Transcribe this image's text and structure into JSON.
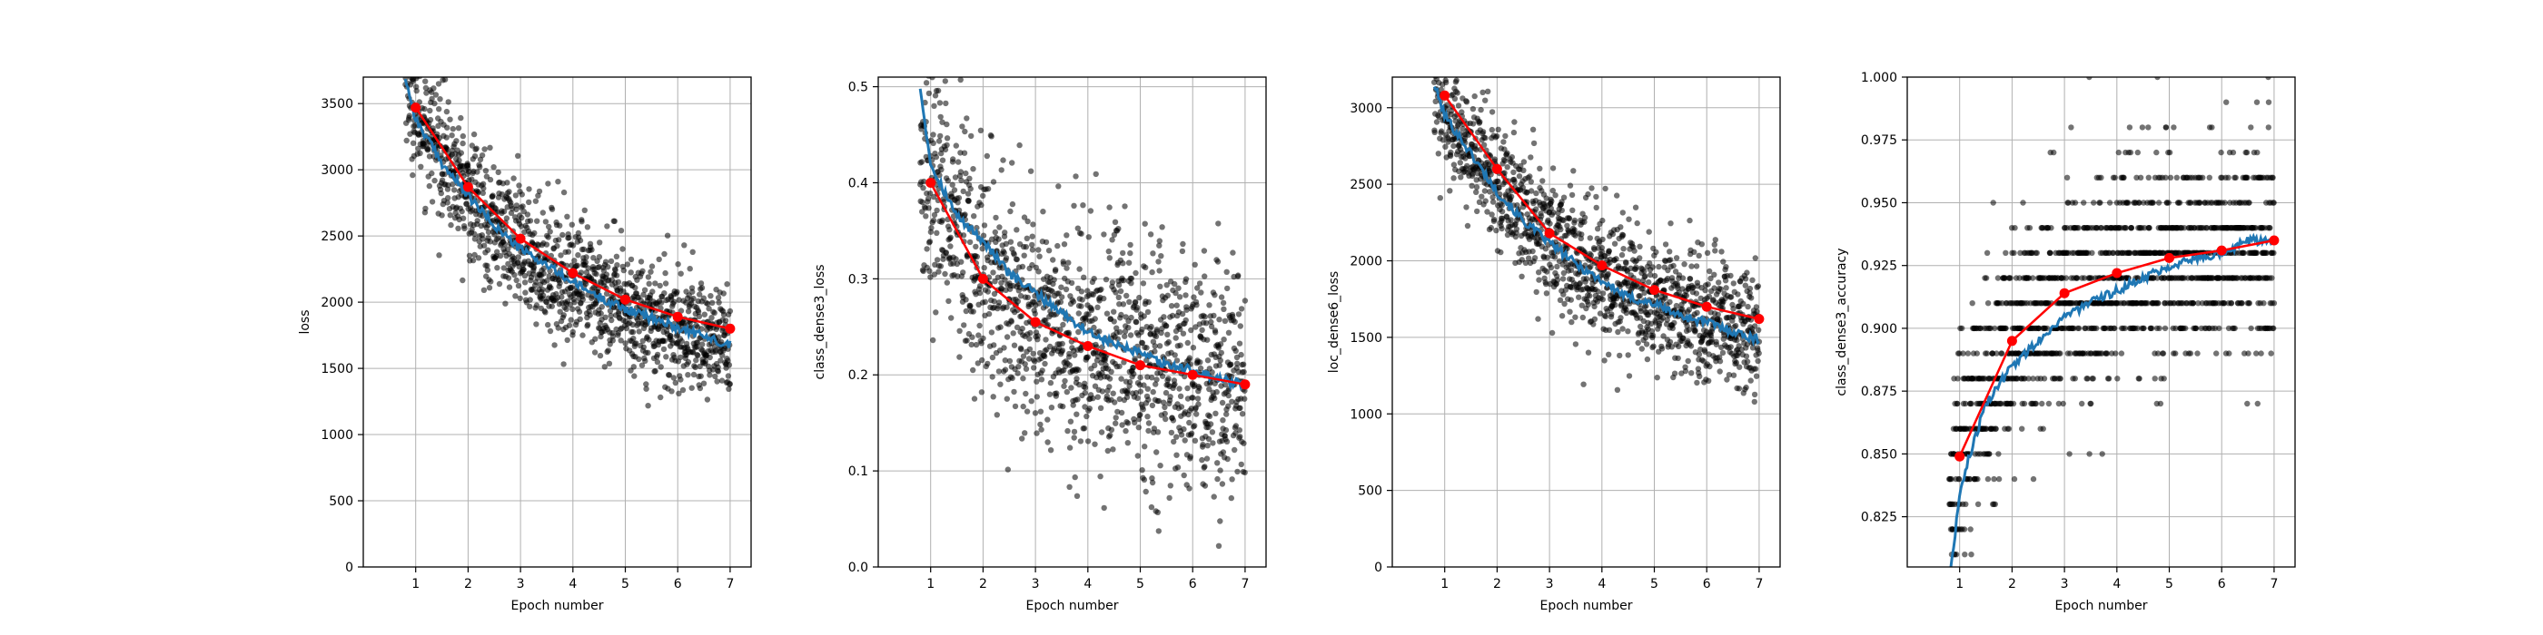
{
  "chart_data": [
    {
      "type": "scatter",
      "xlabel": "Epoch number",
      "ylabel": "loss",
      "xlim": [
        0.0,
        7.4
      ],
      "ylim": [
        0,
        3700
      ],
      "xticks": [
        1,
        2,
        3,
        4,
        5,
        6,
        7
      ],
      "yticks": [
        0,
        500,
        1000,
        1500,
        2000,
        2500,
        3000,
        3500
      ],
      "ytick_labels": [
        "0",
        "500",
        "1000",
        "1500",
        "2000",
        "2500",
        "3000",
        "3500"
      ],
      "grid": true,
      "scatter": {
        "color": "#000000",
        "x_range": [
          0.8,
          7.0
        ],
        "trend": [
          [
            0.8,
            3750
          ],
          [
            1,
            3450
          ],
          [
            2,
            2800
          ],
          [
            3,
            2400
          ],
          [
            4,
            2150
          ],
          [
            5,
            1950
          ],
          [
            6,
            1800
          ],
          [
            7,
            1700
          ]
        ],
        "spread": 230,
        "count": 1400
      },
      "smoothed": {
        "color": "#1f77b4",
        "values": [
          [
            0.8,
            3700
          ],
          [
            1,
            3380
          ],
          [
            1.5,
            3050
          ],
          [
            2,
            2800
          ],
          [
            2.5,
            2580
          ],
          [
            3,
            2400
          ],
          [
            3.5,
            2280
          ],
          [
            4,
            2150
          ],
          [
            4.5,
            2040
          ],
          [
            5,
            1950
          ],
          [
            5.5,
            1880
          ],
          [
            6,
            1810
          ],
          [
            6.5,
            1740
          ],
          [
            7,
            1680
          ]
        ]
      },
      "epoch_avg": {
        "color": "#ff0000",
        "x": [
          1,
          2,
          3,
          4,
          5,
          6,
          7
        ],
        "y": [
          3470,
          2870,
          2480,
          2220,
          2020,
          1890,
          1800
        ]
      }
    },
    {
      "type": "scatter",
      "xlabel": "Epoch number",
      "ylabel": "class_dense3_loss",
      "xlim": [
        0.0,
        7.4
      ],
      "ylim": [
        0,
        0.51
      ],
      "xticks": [
        1,
        2,
        3,
        4,
        5,
        6,
        7
      ],
      "yticks": [
        0.0,
        0.1,
        0.2,
        0.3,
        0.4,
        0.5
      ],
      "ytick_labels": [
        "0.0",
        "0.1",
        "0.2",
        "0.3",
        "0.4",
        "0.5"
      ],
      "grid": true,
      "scatter": {
        "color": "#000000",
        "x_range": [
          0.8,
          7.0
        ],
        "trend": [
          [
            0.8,
            0.44
          ],
          [
            1,
            0.4
          ],
          [
            2,
            0.31
          ],
          [
            3,
            0.26
          ],
          [
            4,
            0.235
          ],
          [
            5,
            0.215
          ],
          [
            6,
            0.205
          ],
          [
            7,
            0.19
          ]
        ],
        "spread": 0.06,
        "count": 1400
      },
      "smoothed": {
        "color": "#1f77b4",
        "values": [
          [
            0.8,
            0.5
          ],
          [
            1,
            0.42
          ],
          [
            1.5,
            0.365
          ],
          [
            2,
            0.34
          ],
          [
            2.5,
            0.305
          ],
          [
            3,
            0.285
          ],
          [
            3.5,
            0.265
          ],
          [
            4,
            0.245
          ],
          [
            4.5,
            0.232
          ],
          [
            5,
            0.222
          ],
          [
            5.5,
            0.21
          ],
          [
            6,
            0.205
          ],
          [
            6.5,
            0.195
          ],
          [
            7,
            0.19
          ]
        ]
      },
      "epoch_avg": {
        "color": "#ff0000",
        "x": [
          1,
          2,
          3,
          4,
          5,
          6,
          7
        ],
        "y": [
          0.4,
          0.3,
          0.255,
          0.23,
          0.21,
          0.2,
          0.19
        ]
      }
    },
    {
      "type": "scatter",
      "xlabel": "Epoch number",
      "ylabel": "loc_dense6_loss",
      "xlim": [
        0.0,
        7.4
      ],
      "ylim": [
        0,
        3200
      ],
      "xticks": [
        1,
        2,
        3,
        4,
        5,
        6,
        7
      ],
      "yticks": [
        0,
        500,
        1000,
        1500,
        2000,
        2500,
        3000
      ],
      "ytick_labels": [
        "0",
        "500",
        "1000",
        "1500",
        "2000",
        "2500",
        "3000"
      ],
      "grid": true,
      "scatter": {
        "color": "#000000",
        "x_range": [
          0.8,
          7.0
        ],
        "trend": [
          [
            0.8,
            3150
          ],
          [
            1,
            2950
          ],
          [
            2,
            2500
          ],
          [
            3,
            2150
          ],
          [
            4,
            1900
          ],
          [
            5,
            1750
          ],
          [
            6,
            1620
          ],
          [
            7,
            1520
          ]
        ],
        "spread": 200,
        "count": 1400
      },
      "smoothed": {
        "color": "#1f77b4",
        "values": [
          [
            0.8,
            3150
          ],
          [
            1,
            2950
          ],
          [
            1.5,
            2700
          ],
          [
            2,
            2450
          ],
          [
            2.5,
            2260
          ],
          [
            3,
            2120
          ],
          [
            3.5,
            1980
          ],
          [
            4,
            1870
          ],
          [
            4.5,
            1760
          ],
          [
            5,
            1720
          ],
          [
            5.5,
            1640
          ],
          [
            6,
            1600
          ],
          [
            6.5,
            1540
          ],
          [
            7,
            1480
          ]
        ]
      },
      "epoch_avg": {
        "color": "#ff0000",
        "x": [
          1,
          2,
          3,
          4,
          5,
          6,
          7
        ],
        "y": [
          3080,
          2600,
          2180,
          1970,
          1810,
          1700,
          1620
        ]
      }
    },
    {
      "type": "scatter",
      "xlabel": "Epoch number",
      "ylabel": "class_dense3_accuracy",
      "xlim": [
        0.0,
        7.4
      ],
      "ylim": [
        0.805,
        1.0
      ],
      "xticks": [
        1,
        2,
        3,
        4,
        5,
        6,
        7
      ],
      "yticks": [
        0.825,
        0.85,
        0.875,
        0.9,
        0.925,
        0.95,
        0.975,
        1.0
      ],
      "ytick_labels": [
        "0.825",
        "0.850",
        "0.875",
        "0.900",
        "0.925",
        "0.950",
        "0.975",
        "1.000"
      ],
      "grid": true,
      "scatter": {
        "color": "#000000",
        "x_range": [
          0.8,
          7.0
        ],
        "trend": [
          [
            0.8,
            0.83
          ],
          [
            1,
            0.85
          ],
          [
            2,
            0.895
          ],
          [
            3,
            0.912
          ],
          [
            4,
            0.92
          ],
          [
            5,
            0.927
          ],
          [
            6,
            0.931
          ],
          [
            7,
            0.935
          ]
        ],
        "spread": 0.022,
        "count": 1400,
        "quantize": 0.01
      },
      "smoothed": {
        "color": "#1f77b4",
        "values": [
          [
            0.8,
            0.8
          ],
          [
            0.9,
            0.815
          ],
          [
            1,
            0.835
          ],
          [
            1.2,
            0.85
          ],
          [
            1.5,
            0.87
          ],
          [
            2,
            0.885
          ],
          [
            2.5,
            0.895
          ],
          [
            3,
            0.905
          ],
          [
            3.5,
            0.91
          ],
          [
            4,
            0.915
          ],
          [
            4.5,
            0.92
          ],
          [
            5,
            0.925
          ],
          [
            5.5,
            0.928
          ],
          [
            6,
            0.93
          ],
          [
            6.5,
            0.935
          ],
          [
            7,
            0.935
          ]
        ]
      },
      "epoch_avg": {
        "color": "#ff0000",
        "x": [
          1,
          2,
          3,
          4,
          5,
          6,
          7
        ],
        "y": [
          0.849,
          0.895,
          0.914,
          0.922,
          0.928,
          0.931,
          0.935
        ]
      }
    }
  ]
}
